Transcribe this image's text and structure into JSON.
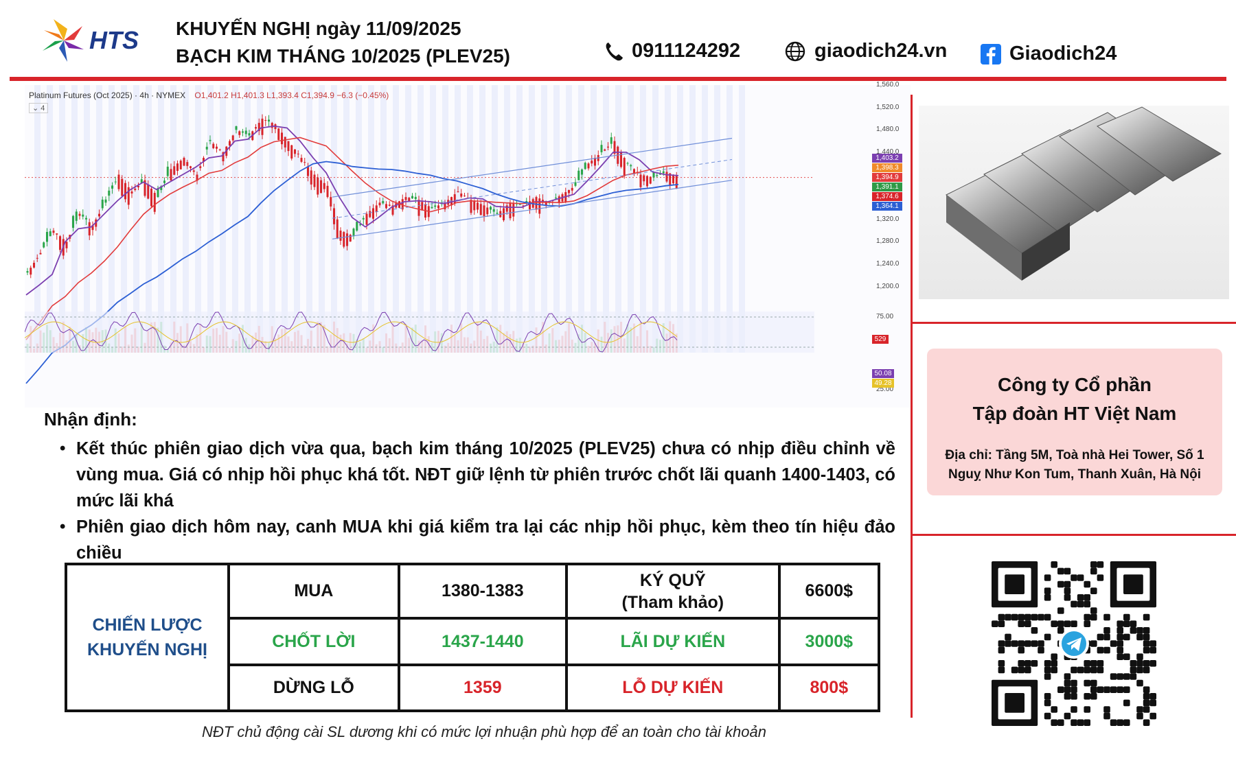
{
  "header": {
    "brand": "HTS",
    "title_line1": "KHUYẾN NGHỊ ngày 11/09/2025",
    "title_line2": "BẠCH KIM THÁNG 10/2025 (PLEV25)",
    "phone": "0911124292",
    "website": "giaodich24.vn",
    "facebook": "Giaodich24",
    "icons": [
      "phone-icon",
      "globe-icon",
      "facebook-icon"
    ]
  },
  "chart": {
    "symbol": "Platinum Futures (Oct 2025) · 4h · NYMEX",
    "indicator_count": "4",
    "ohlc": "O1,401.2 H1,401.3 L1,393.4 C1,394.9 −6.3 (−0.45%)",
    "price_axis": [
      "1,560.0",
      "1,520.0",
      "1,480.0",
      "1,440.0",
      "1,320.0",
      "1,280.0",
      "1,240.0",
      "1,200.0"
    ],
    "price_tags": [
      {
        "label": "1,403.2",
        "color": "#7b3fb0"
      },
      {
        "label": "1,398.3",
        "color": "#f08a2a"
      },
      {
        "label": "1,394.9",
        "color": "#e23b3b"
      },
      {
        "label": "1,391.1",
        "color": "#2f9a47"
      },
      {
        "label": "1,374.6",
        "color": "#d8242a"
      },
      {
        "label": "1,364.1",
        "color": "#2c5fd4"
      }
    ],
    "volume_tag": "529",
    "rsi_axis": [
      "75.00",
      "25.00"
    ],
    "rsi_tags": [
      {
        "label": "50.08",
        "color": "#7b3fb0"
      },
      {
        "label": "49.28",
        "color": "#e6c229"
      }
    ]
  },
  "chart_data": {
    "type": "line",
    "title": "Platinum Futures (Oct 2025) · 4h · NYMEX",
    "ylim": [
      1180,
      1560
    ],
    "series": [
      {
        "values": [
          1225,
          1260,
          1300,
          1280,
          1330,
          1310,
          1350,
          1400,
          1370,
          1390,
          1360,
          1410,
          1430,
          1400,
          1460,
          1440,
          1480,
          1470,
          1500,
          1490,
          1460,
          1430,
          1400,
          1380,
          1300,
          1290,
          1330,
          1350,
          1345,
          1360,
          1355,
          1340,
          1350,
          1370,
          1355,
          1345,
          1330,
          1350,
          1345,
          1360,
          1350,
          1365,
          1380,
          1420,
          1440,
          1460,
          1420,
          1400,
          1395,
          1405,
          1395
        ]
      }
    ]
  },
  "company": {
    "name_line1": "Công ty Cổ phần",
    "name_line2": "Tập đoàn HT Việt Nam",
    "address_line1": "Địa chỉ:  Tầng 5M, Toà nhà Hei Tower, Số 1",
    "address_line2": "Nguỵ Như Kon Tum, Thanh Xuân, Hà Nội"
  },
  "analysis": {
    "title": "Nhận định:",
    "bullet1": "Kết thúc phiên giao dịch vừa qua, bạch kim tháng 10/2025 (PLEV25) chưa có nhịp điều chỉnh về vùng mua. Giá có nhịp hồi phục khá tốt. NĐT giữ lệnh từ phiên trước chốt lãi quanh 1400-1403, có mức lãi khá",
    "bullet2": "Phiên giao dịch hôm nay, canh MUA khi giá kiểm tra lại các nhịp hồi phục, kèm theo tín hiệu đảo chiều"
  },
  "strategy": {
    "lead_line1": "CHIẾN LƯỢC",
    "lead_line2": "KHUYẾN NGHỊ",
    "row1": {
      "label": "MUA",
      "value": "1380-1383",
      "k_label1": "KÝ QUỸ",
      "k_label2": "(Tham khảo)",
      "k_value": "6600$"
    },
    "row2": {
      "label": "CHỐT LỜI",
      "value": "1437-1440",
      "k_label": "LÃI DỰ KIẾN",
      "k_value": "3000$"
    },
    "row3": {
      "label": "DỪNG LỖ",
      "value": "1359",
      "k_label": "LỖ DỰ KIẾN",
      "k_value": "800$"
    }
  },
  "footnote": "NĐT chủ động cài SL dương khi có mức lợi nhuận phù hợp để an toàn cho tài khoản"
}
